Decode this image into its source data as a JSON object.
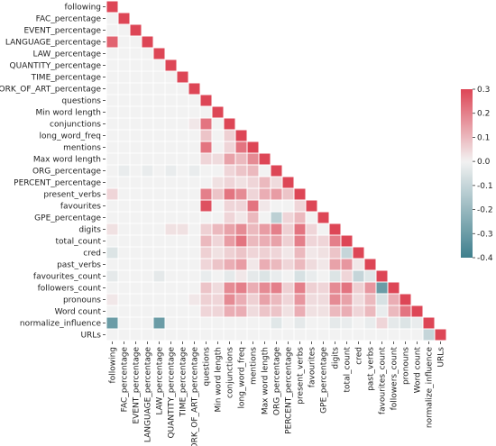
{
  "chart_data": {
    "type": "heatmap",
    "title": "",
    "variables": [
      "following",
      "FAC_percentage",
      "EVENT_percentage",
      "LANGUAGE_percentage",
      "LAW_percentage",
      "QUANTITY_percentage",
      "TIME_percentage",
      "WORK_OF_ART_percentage",
      "questions",
      "Min word length",
      "conjunctions",
      "long_word_freq",
      "mentions",
      "Max word length",
      "ORG_percentage",
      "PERCENT_percentage",
      "present_verbs",
      "favourites",
      "GPE_percentage",
      "digits",
      "total_count",
      "cred",
      "past_verbs",
      "favourites_count",
      "followers_count",
      "pronouns",
      "Word count",
      "normalize_influence",
      "URLs"
    ],
    "y_tick_labels": [
      "following",
      "FAC_percentage",
      "EVENT_percentage",
      "LANGUAGE_percentage",
      "LAW_percentage",
      "QUANTITY_percentage",
      "TIME_percentage",
      "WORK_OF_ART_percentage",
      "questions",
      "Min word length",
      "conjunctions",
      "long_word_freq",
      "mentions",
      "Max word length",
      "ORG_percentage",
      "PERCENT_percentage",
      "present_verbs",
      "favourites",
      "GPE_percentage",
      "digits",
      "total_count",
      "cred",
      "past_verbs",
      "favourites_count",
      "followers_count",
      "pronouns",
      "Word count",
      "normalize_influence",
      "URLs"
    ],
    "x_tick_labels": [
      "following",
      "FAC_percentage",
      "EVENT_percentage",
      "LANGUAGE_percentage",
      "LAW_percentage",
      "QUANTITY_percentage",
      "TIME_percentage",
      "WORK_OF_ART_percentage",
      "questions",
      "Min word length",
      "conjunctions",
      "long_word_freq",
      "mentions",
      "Max word length",
      "ORG_percentage",
      "PERCENT_percentage",
      "present_verbs",
      "favourites",
      "GPE_percentage",
      "digits",
      "total_count",
      "cred",
      "past_verbs",
      "favourites_count",
      "followers_count",
      "pronouns",
      "Word count",
      "normalize_influence",
      "URLs"
    ],
    "mask": "lower triangle incl. diagonal shown (upper masked)",
    "colorbar": {
      "vmin": -0.4,
      "vmax": 0.3,
      "ticks": [
        "0.3",
        "0.2",
        "0.1",
        "0.0",
        "-0.1",
        "-0.2",
        "-0.3",
        "-0.4"
      ],
      "colors": {
        "negative": "#3e7f8d",
        "neutral": "#f2f2f2",
        "positive": "#dd4656"
      }
    },
    "values": [
      [
        1.0
      ],
      [
        0.0,
        1.0
      ],
      [
        0.0,
        0.0,
        1.0
      ],
      [
        0.25,
        0.0,
        0.0,
        1.0
      ],
      [
        0.0,
        0.0,
        0.0,
        0.0,
        1.0
      ],
      [
        0.0,
        0.0,
        0.0,
        0.0,
        0.0,
        1.0
      ],
      [
        0.0,
        0.0,
        0.0,
        0.0,
        0.0,
        0.0,
        1.0
      ],
      [
        0.0,
        0.0,
        0.0,
        0.0,
        0.0,
        0.0,
        0.0,
        1.0
      ],
      [
        0.0,
        0.0,
        0.0,
        0.0,
        0.0,
        0.0,
        0.0,
        0.0,
        1.0
      ],
      [
        0.0,
        0.0,
        0.0,
        0.0,
        0.0,
        0.0,
        0.0,
        0.0,
        0.0,
        1.0
      ],
      [
        0.0,
        0.0,
        0.0,
        0.0,
        0.0,
        0.0,
        0.0,
        0.02,
        0.22,
        0.0,
        1.0
      ],
      [
        0.0,
        0.0,
        0.0,
        0.0,
        0.0,
        0.0,
        0.0,
        0.0,
        0.08,
        0.0,
        0.06,
        1.0
      ],
      [
        0.0,
        0.0,
        0.0,
        0.0,
        0.0,
        0.0,
        0.0,
        0.0,
        0.22,
        0.0,
        0.05,
        0.22,
        1.0
      ],
      [
        0.0,
        0.0,
        0.0,
        0.0,
        0.0,
        0.0,
        0.0,
        0.0,
        0.05,
        0.04,
        0.14,
        0.1,
        0.18,
        1.0
      ],
      [
        0.0,
        -0.02,
        0.0,
        -0.02,
        0.0,
        -0.02,
        0.0,
        -0.02,
        0.0,
        0.0,
        0.05,
        0.08,
        0.1,
        0.0,
        1.0
      ],
      [
        0.0,
        0.0,
        0.0,
        0.0,
        0.0,
        0.0,
        0.0,
        0.0,
        0.0,
        0.03,
        0.05,
        0.03,
        0.05,
        0.1,
        0.04,
        1.0
      ],
      [
        0.05,
        0.0,
        0.0,
        0.0,
        0.0,
        0.0,
        0.0,
        0.0,
        0.2,
        0.08,
        0.22,
        0.18,
        0.05,
        0.12,
        0.15,
        0.08,
        1.0
      ],
      [
        0.0,
        0.0,
        0.0,
        0.0,
        0.0,
        0.0,
        0.0,
        0.0,
        0.28,
        0.0,
        0.05,
        0.05,
        0.22,
        0.02,
        0.0,
        0.0,
        0.05,
        1.0
      ],
      [
        0.0,
        0.0,
        0.0,
        0.0,
        0.0,
        0.0,
        0.0,
        0.0,
        0.0,
        0.0,
        0.05,
        0.02,
        0.1,
        0.0,
        -0.12,
        0.05,
        0.1,
        0.0,
        1.0
      ],
      [
        0.03,
        0.0,
        0.0,
        0.0,
        0.0,
        0.03,
        0.03,
        0.0,
        0.06,
        0.1,
        0.14,
        0.18,
        0.1,
        0.15,
        0.2,
        0.06,
        0.22,
        0.05,
        0.0,
        1.0
      ],
      [
        0.0,
        0.0,
        0.0,
        0.0,
        0.0,
        0.0,
        0.0,
        0.0,
        0.1,
        0.05,
        0.15,
        0.22,
        0.1,
        0.12,
        0.14,
        0.06,
        0.2,
        0.05,
        0.05,
        0.2,
        1.0
      ],
      [
        -0.05,
        0.0,
        0.0,
        0.0,
        0.0,
        0.0,
        0.0,
        0.0,
        0.06,
        0.03,
        0.06,
        0.08,
        0.05,
        0.06,
        0.05,
        0.02,
        0.1,
        0.02,
        0.03,
        0.08,
        -0.1,
        1.0
      ],
      [
        0.0,
        0.0,
        0.0,
        0.0,
        0.0,
        0.0,
        0.0,
        0.0,
        0.05,
        0.08,
        0.12,
        0.15,
        0.02,
        0.12,
        0.1,
        0.05,
        0.1,
        0.04,
        0.02,
        0.14,
        0.16,
        0.02,
        1.0
      ],
      [
        -0.03,
        0.0,
        0.0,
        0.0,
        -0.03,
        0.0,
        0.0,
        0.0,
        -0.02,
        0.0,
        -0.03,
        0.02,
        -0.03,
        -0.05,
        -0.02,
        0.0,
        -0.06,
        -0.02,
        0.0,
        -0.05,
        0.05,
        -0.1,
        -0.04,
        1.0
      ],
      [
        0.0,
        0.0,
        0.0,
        0.0,
        0.0,
        0.0,
        0.0,
        0.0,
        0.08,
        0.04,
        0.18,
        0.2,
        0.12,
        0.18,
        0.2,
        0.06,
        0.2,
        0.06,
        0.05,
        0.18,
        0.22,
        0.06,
        0.16,
        -0.3,
        1.0
      ],
      [
        0.02,
        0.0,
        0.0,
        0.0,
        0.0,
        0.0,
        0.0,
        0.02,
        0.06,
        0.05,
        0.18,
        0.12,
        0.06,
        0.14,
        0.1,
        0.05,
        0.16,
        0.04,
        0.04,
        0.18,
        0.14,
        0.04,
        0.1,
        -0.06,
        0.12,
        1.0
      ],
      [
        0.0,
        0.0,
        0.0,
        0.0,
        0.0,
        0.0,
        0.0,
        0.0,
        0.05,
        0.05,
        0.12,
        0.12,
        0.04,
        0.08,
        0.08,
        0.03,
        0.12,
        0.03,
        0.03,
        0.1,
        0.12,
        0.05,
        0.1,
        -0.02,
        0.1,
        0.22,
        1.0
      ],
      [
        -0.3,
        0.0,
        0.0,
        0.0,
        -0.3,
        0.0,
        0.0,
        0.0,
        0.0,
        0.0,
        0.0,
        0.0,
        0.0,
        0.0,
        -0.04,
        0.0,
        -0.03,
        0.0,
        0.0,
        -0.03,
        -0.02,
        0.0,
        -0.02,
        0.05,
        -0.03,
        -0.05,
        -0.02,
        1.0
      ],
      [
        0.0,
        0.0,
        0.0,
        0.0,
        0.0,
        0.0,
        0.0,
        0.0,
        0.0,
        0.0,
        0.0,
        0.0,
        0.0,
        0.0,
        0.0,
        0.0,
        0.0,
        0.0,
        0.0,
        0.0,
        0.0,
        0.0,
        0.0,
        0.0,
        0.0,
        0.0,
        0.0,
        -0.1,
        1.0
      ]
    ]
  }
}
